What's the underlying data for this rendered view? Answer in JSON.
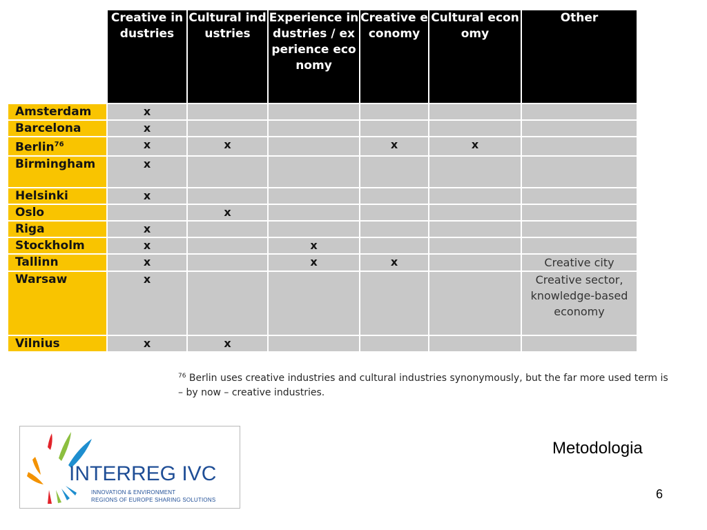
{
  "table": {
    "headers": [
      "Creative industries",
      "Cultural industries",
      "Experience industries / experience economy",
      "Creative economy",
      "Cultural economy",
      "Other"
    ],
    "rows": [
      {
        "city": "Amsterdam",
        "sup": "",
        "cells": [
          "x",
          "",
          "",
          "",
          "",
          ""
        ]
      },
      {
        "city": "Barcelona",
        "sup": "",
        "cells": [
          "x",
          "",
          "",
          "",
          "",
          ""
        ]
      },
      {
        "city": "Berlin",
        "sup": "76",
        "cells": [
          "x",
          "x",
          "",
          "x",
          "x",
          ""
        ]
      },
      {
        "city": "Birmingham",
        "sup": "",
        "cells": [
          "x",
          "",
          "",
          "",
          "",
          ""
        ]
      },
      {
        "city": "Helsinki",
        "sup": "",
        "cells": [
          "x",
          "",
          "",
          "",
          "",
          ""
        ]
      },
      {
        "city": "Oslo",
        "sup": "",
        "cells": [
          "",
          "x",
          "",
          "",
          "",
          ""
        ]
      },
      {
        "city": "Riga",
        "sup": "",
        "cells": [
          "x",
          "",
          "",
          "",
          "",
          ""
        ]
      },
      {
        "city": "Stockholm",
        "sup": "",
        "cells": [
          "x",
          "",
          "x",
          "",
          "",
          ""
        ]
      },
      {
        "city": "Tallinn",
        "sup": "",
        "cells": [
          "x",
          "",
          "x",
          "x",
          "",
          "Creative city"
        ]
      },
      {
        "city": "Warsaw",
        "sup": "",
        "cells": [
          "x",
          "",
          "",
          "",
          "",
          "Creative sector, knowledge-based economy"
        ]
      },
      {
        "city": "Vilnius",
        "sup": "",
        "cells": [
          "x",
          "x",
          "",
          "",
          "",
          ""
        ]
      }
    ]
  },
  "footnote": {
    "marker": "76",
    "text": "Berlin uses creative industries and cultural industries synonymously, but the far more used term is – by now – creative industries."
  },
  "logo": {
    "title": "INTERREG IVC",
    "line1": "INNOVATION & ENVIRONMENT",
    "line2": "REGIONS OF EUROPE SHARING SOLUTIONS",
    "colors": [
      "#e2232a",
      "#f39200",
      "#8cbf3f",
      "#1e8ecf",
      "#1f4e96"
    ]
  },
  "slide": {
    "label": "Metodologia",
    "page": "6"
  }
}
